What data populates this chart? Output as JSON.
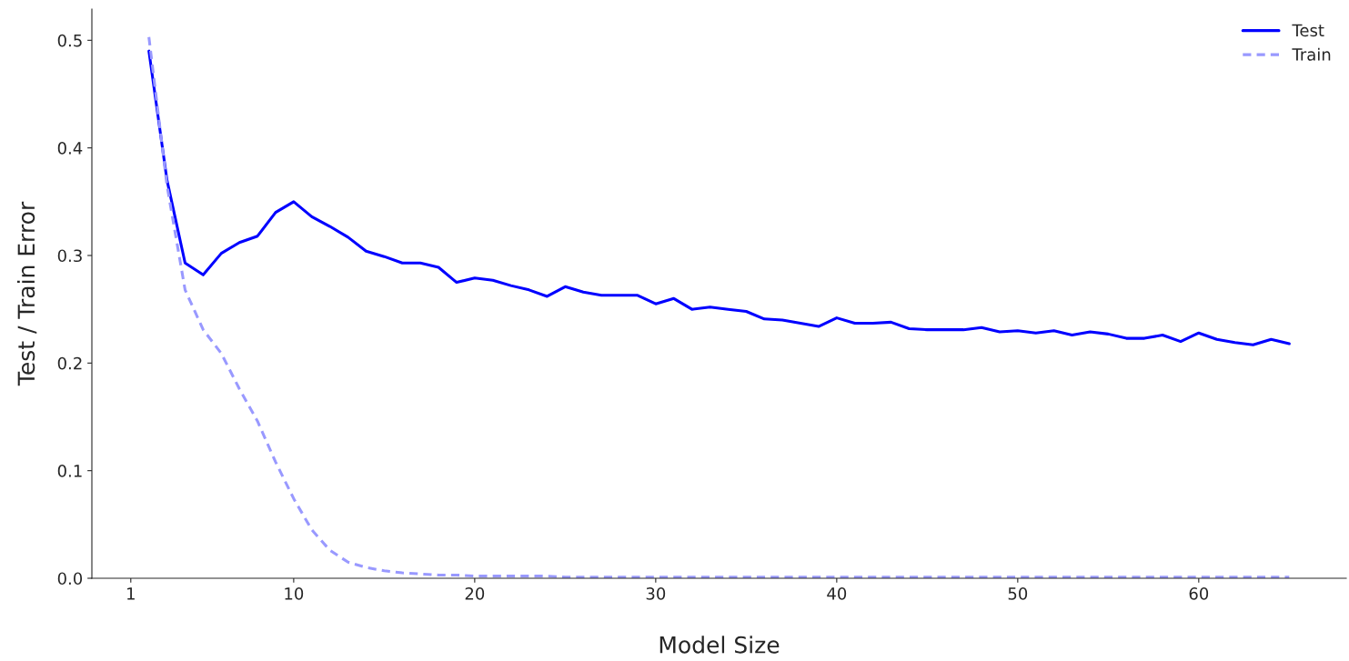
{
  "chart_data": {
    "type": "line",
    "xlabel": "Model Size",
    "ylabel": "Test / Train Error",
    "x": [
      2,
      3,
      4,
      5,
      6,
      7,
      8,
      9,
      10,
      11,
      12,
      13,
      14,
      15,
      16,
      17,
      18,
      19,
      20,
      21,
      22,
      23,
      24,
      25,
      26,
      27,
      28,
      29,
      30,
      31,
      32,
      33,
      34,
      35,
      36,
      37,
      38,
      39,
      40,
      41,
      42,
      43,
      44,
      45,
      46,
      47,
      48,
      49,
      50,
      51,
      52,
      53,
      54,
      55,
      56,
      57,
      58,
      59,
      60,
      61,
      62,
      63,
      64,
      65
    ],
    "series": [
      {
        "name": "Test",
        "color": "#0000ff",
        "line_style": "solid",
        "values": [
          0.49,
          0.37,
          0.293,
          0.282,
          0.302,
          0.312,
          0.318,
          0.34,
          0.35,
          0.336,
          0.327,
          0.317,
          0.304,
          0.299,
          0.293,
          0.293,
          0.289,
          0.275,
          0.279,
          0.277,
          0.272,
          0.268,
          0.262,
          0.271,
          0.266,
          0.263,
          0.263,
          0.263,
          0.255,
          0.26,
          0.25,
          0.252,
          0.25,
          0.248,
          0.241,
          0.24,
          0.237,
          0.234,
          0.242,
          0.237,
          0.237,
          0.238,
          0.232,
          0.231,
          0.231,
          0.231,
          0.233,
          0.229,
          0.23,
          0.228,
          0.23,
          0.226,
          0.229,
          0.227,
          0.223,
          0.223,
          0.226,
          0.22,
          0.228,
          0.222,
          0.219,
          0.217,
          0.222,
          0.218
        ]
      },
      {
        "name": "Train",
        "color": "#9999ff",
        "line_style": "dashed",
        "values": [
          0.503,
          0.365,
          0.268,
          0.231,
          0.209,
          0.176,
          0.146,
          0.108,
          0.074,
          0.045,
          0.026,
          0.015,
          0.01,
          0.007,
          0.005,
          0.004,
          0.003,
          0.003,
          0.002,
          0.002,
          0.002,
          0.002,
          0.002,
          0.001,
          0.001,
          0.001,
          0.001,
          0.001,
          0.001,
          0.001,
          0.001,
          0.001,
          0.001,
          0.001,
          0.001,
          0.001,
          0.001,
          0.001,
          0.001,
          0.001,
          0.001,
          0.001,
          0.001,
          0.001,
          0.001,
          0.001,
          0.001,
          0.001,
          0.001,
          0.001,
          0.001,
          0.001,
          0.001,
          0.001,
          0.001,
          0.001,
          0.001,
          0.001,
          0.001,
          0.001,
          0.001,
          0.001,
          0.001,
          0.001
        ]
      }
    ],
    "xlim": [
      -1.15,
      68.15
    ],
    "xticks": [
      1,
      10,
      20,
      30,
      40,
      50,
      60
    ],
    "ylim": [
      0,
      0.529
    ],
    "yticks": [
      {
        "value": 0,
        "label": "0.0"
      },
      0.1,
      0.2,
      0.3,
      0.4,
      0.5
    ],
    "legend": "top right",
    "grid": false,
    "marker": "none"
  }
}
